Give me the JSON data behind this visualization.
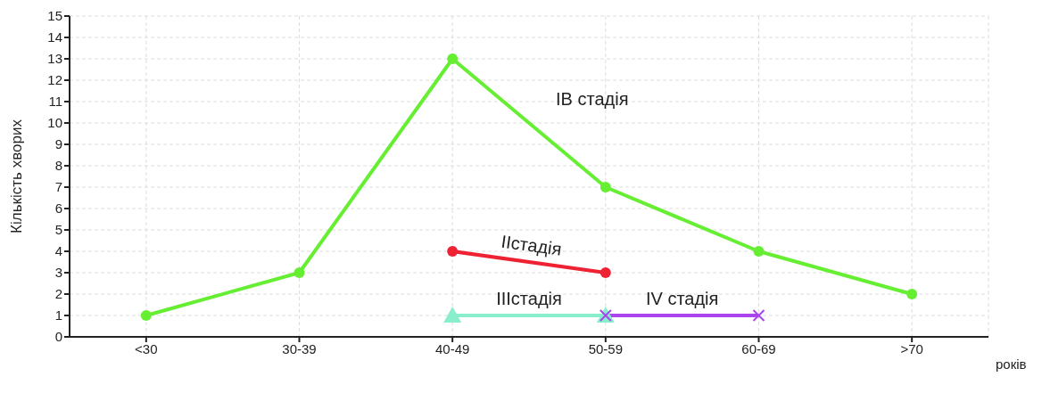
{
  "chart_data": {
    "type": "line",
    "xlabel": "років",
    "ylabel": "Кількість хворих",
    "categories": [
      "<30",
      "30-39",
      "40-49",
      "50-59",
      "60-69",
      ">70"
    ],
    "series": [
      {
        "name": "IB стадія",
        "color": "#66ee33",
        "marker": "circle",
        "values": [
          1,
          3,
          13,
          7,
          4,
          2
        ]
      },
      {
        "name": "IIстадія",
        "color": "#ee2233",
        "marker": "circle",
        "values": [
          null,
          null,
          4,
          3,
          null,
          null
        ]
      },
      {
        "name": "IIIстадія",
        "color": "#88eecc",
        "marker": "triangle",
        "values": [
          null,
          null,
          1,
          1,
          null,
          null
        ]
      },
      {
        "name": "IV  стадія",
        "color": "#aa44ee",
        "marker": "cross",
        "values": [
          null,
          null,
          null,
          1,
          1,
          null
        ]
      }
    ],
    "ylim": [
      0,
      15
    ],
    "yticks": [
      0,
      1,
      2,
      3,
      4,
      5,
      6,
      7,
      8,
      9,
      10,
      11,
      12,
      13,
      14,
      15
    ],
    "grid": true,
    "line_style": "solid"
  }
}
